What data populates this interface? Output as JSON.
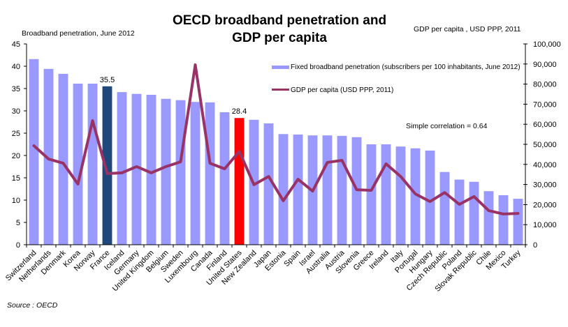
{
  "chart_data": {
    "type": "bar",
    "title_lines": [
      "OECD broadband penetration and",
      "GDP per capita"
    ],
    "ylabel_left": "Broadband penetration, June 2012",
    "ylabel_right": "GDP per capita , USD PPP,  2011",
    "ylim_left": [
      0,
      45
    ],
    "yticks_left": [
      0,
      5,
      10,
      15,
      20,
      25,
      30,
      35,
      40,
      45
    ],
    "ylim_right": [
      0,
      100000
    ],
    "yticks_right": [
      0,
      10000,
      20000,
      30000,
      40000,
      50000,
      60000,
      70000,
      80000,
      90000,
      100000
    ],
    "yticks_right_labels": [
      "0",
      "10,000",
      "20,000",
      "30,000",
      "40,000",
      "50,000",
      "60,000",
      "70,000",
      "80,000",
      "90,000",
      "100,000"
    ],
    "grid": false,
    "categories": [
      "Switzerland",
      "Netherlands",
      "Denmark",
      "Korea",
      "Norway",
      "France",
      "Iceland",
      "Germany",
      "United Kingdom",
      "Belgium",
      "Sweden",
      "Luxembourg",
      "Canada",
      "Finland",
      "United States",
      "New Zealand",
      "Japan",
      "Estonia",
      "Spain",
      "Israel",
      "Australia",
      "Austria",
      "Slovenia",
      "Greece",
      "Ireland",
      "Italy",
      "Portugal",
      "Hungary",
      "Czech Republic",
      "Poland",
      "Slovak Republic",
      "Chile",
      "Mexico",
      "Turkey"
    ],
    "series": [
      {
        "name": "Fixed broadband penetration (subscribers per 100 inhabitants, June 2012)",
        "type": "bar",
        "axis": "left",
        "color": "#9999ff",
        "values": [
          41.6,
          39.4,
          38.3,
          36.1,
          36.1,
          35.5,
          34.2,
          33.8,
          33.6,
          32.7,
          32.4,
          32.0,
          31.9,
          29.7,
          28.4,
          28.0,
          27.2,
          24.8,
          24.7,
          24.5,
          24.5,
          24.4,
          24.1,
          22.5,
          22.5,
          22.0,
          21.6,
          21.1,
          16.3,
          14.6,
          14.1,
          12.0,
          11.1,
          10.3
        ]
      },
      {
        "name": "GDP per capita (USD PPP, 2011)",
        "type": "line",
        "axis": "right",
        "color": "#993366",
        "values": [
          49300,
          42700,
          40600,
          30200,
          61800,
          35400,
          35800,
          38900,
          35800,
          38900,
          41300,
          89600,
          40600,
          37800,
          46500,
          29900,
          34000,
          21900,
          32600,
          26700,
          41000,
          42000,
          27400,
          27100,
          40300,
          34000,
          25300,
          21500,
          26000,
          20100,
          24000,
          17000,
          15300,
          15600
        ]
      }
    ],
    "highlights": [
      {
        "category": "France",
        "color": "#1f497d",
        "label": "35.5"
      },
      {
        "category": "United States",
        "color": "#ff0000",
        "label": "28.4"
      }
    ],
    "legend": {
      "placement": "top-right",
      "entries": [
        {
          "label": "Fixed broadband penetration (subscribers per 100 inhabitants, June 2012)",
          "color": "#9999ff",
          "kind": "bar"
        },
        {
          "label": "GDP per capita (USD PPP, 2011)",
          "color": "#993366",
          "kind": "line"
        }
      ]
    },
    "annotations": [
      "Simple  correlation = 0.64"
    ],
    "source": "Source : OECD"
  }
}
